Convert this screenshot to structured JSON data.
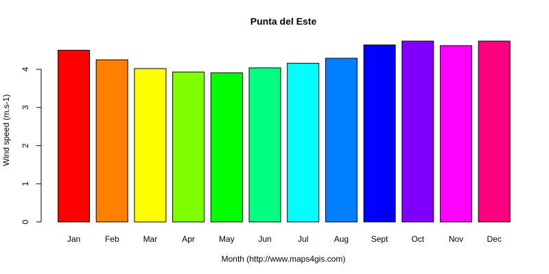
{
  "chart_data": {
    "type": "bar",
    "title": "Punta del Este",
    "xlabel": "Month (http://www.maps4gis.com)",
    "ylabel": "Wind speed (m.s-1)",
    "categories": [
      "Jan",
      "Feb",
      "Mar",
      "Apr",
      "May",
      "Jun",
      "Jul",
      "Aug",
      "Sept",
      "Oct",
      "Nov",
      "Dec"
    ],
    "values": [
      4.5,
      4.25,
      4.02,
      3.93,
      3.91,
      4.04,
      4.16,
      4.29,
      4.64,
      4.74,
      4.62,
      4.74
    ],
    "colors": [
      "#ff0000",
      "#ff8000",
      "#ffff00",
      "#80ff00",
      "#00ff00",
      "#00ff80",
      "#00ffff",
      "#0080ff",
      "#0000ff",
      "#8000ff",
      "#ff00ff",
      "#ff0080"
    ],
    "yticks": [
      0,
      1,
      2,
      3,
      4
    ],
    "ylim": [
      0,
      4.8
    ],
    "grid": false,
    "legend": "none"
  }
}
